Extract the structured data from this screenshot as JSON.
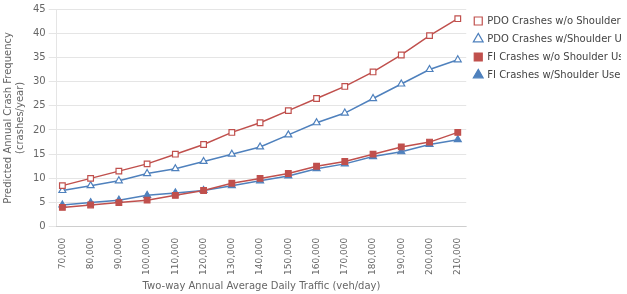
{
  "chart_data": {
    "type": "line",
    "x": [
      70000,
      80000,
      90000,
      100000,
      110000,
      120000,
      130000,
      140000,
      150000,
      160000,
      170000,
      180000,
      190000,
      200000,
      210000
    ],
    "series": [
      {
        "name": "PDO Crashes w/o Shoulder Use",
        "color": "#c0504d",
        "marker": "square-open",
        "values": [
          8.5,
          10.0,
          11.5,
          13.0,
          15.0,
          17.0,
          19.5,
          21.5,
          24.0,
          26.5,
          29.0,
          32.0,
          35.5,
          39.5,
          43.0
        ]
      },
      {
        "name": "PDO Crashes w/Shoulder Use",
        "color": "#4f81bd",
        "marker": "triangle-open",
        "values": [
          7.5,
          8.5,
          9.5,
          11.0,
          12.0,
          13.5,
          15.0,
          16.5,
          19.0,
          21.5,
          23.5,
          26.5,
          29.5,
          32.5,
          34.5
        ]
      },
      {
        "name": "FI Crashes w/o Shoulder Use",
        "color": "#c0504d",
        "marker": "square",
        "values": [
          4.0,
          4.5,
          5.0,
          5.5,
          6.5,
          7.5,
          9.0,
          10.0,
          11.0,
          12.5,
          13.5,
          15.0,
          16.5,
          17.5,
          19.5
        ]
      },
      {
        "name": "FI Crashes w/Shoulder Use",
        "color": "#4f81bd",
        "marker": "triangle",
        "values": [
          4.5,
          5.0,
          5.5,
          6.5,
          7.0,
          7.5,
          8.5,
          9.5,
          10.5,
          12.0,
          13.0,
          14.5,
          15.5,
          17.0,
          18.0
        ]
      }
    ],
    "xlabel": "Two-way Annual Average Daily Traffic (veh/day)",
    "ylabel": "Predicted Annual Crash Frequency\n(crashes/year)",
    "xlim": [
      68000,
      213000
    ],
    "xticks": [
      {
        "value": 70000,
        "label": "70,000"
      },
      {
        "value": 80000,
        "label": "80,000"
      },
      {
        "value": 90000,
        "label": "90,000"
      },
      {
        "value": 100000,
        "label": "100,000"
      },
      {
        "value": 110000,
        "label": "110,000"
      },
      {
        "value": 120000,
        "label": "120,000"
      },
      {
        "value": 130000,
        "label": "130,000"
      },
      {
        "value": 140000,
        "label": "140,000"
      },
      {
        "value": 150000,
        "label": "150,000"
      },
      {
        "value": 160000,
        "label": "160,000"
      },
      {
        "value": 170000,
        "label": "170,000"
      },
      {
        "value": 180000,
        "label": "180,000"
      },
      {
        "value": 190000,
        "label": "190,000"
      },
      {
        "value": 200000,
        "label": "200,000"
      },
      {
        "value": 210000,
        "label": "210,000"
      }
    ],
    "ylim": [
      0,
      45
    ],
    "yticks": [
      0,
      5,
      10,
      15,
      20,
      25,
      30,
      35,
      40,
      45
    ],
    "grid": "y",
    "legend": "right"
  }
}
